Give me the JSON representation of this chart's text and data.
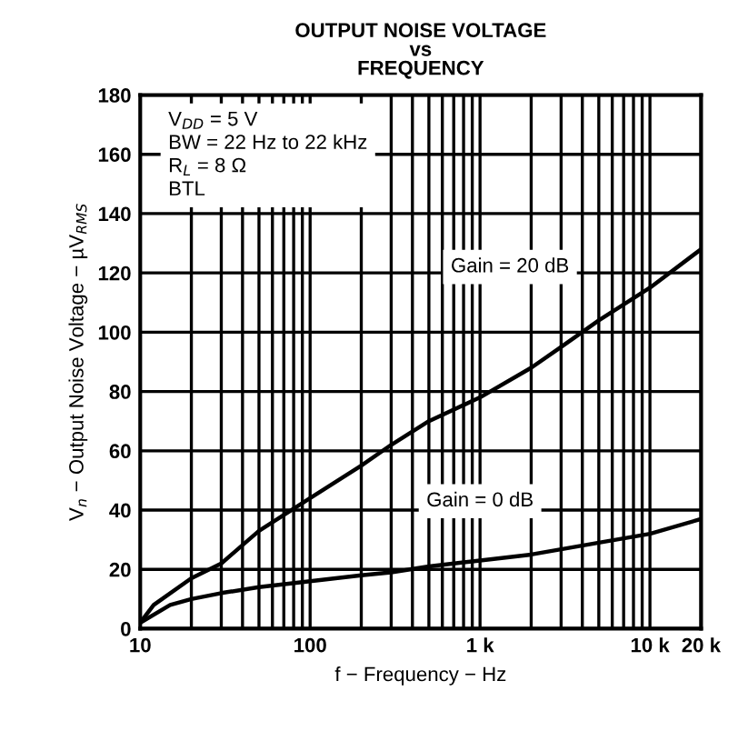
{
  "chart_data": {
    "type": "line",
    "title": "OUTPUT NOISE VOLTAGE\nvs\nFREQUENCY",
    "xlabel": "f − Frequency − Hz",
    "ylabel": "V$_{n}$ − Output Noise Voltage − µV$_{RMS}$",
    "annotations": [
      "V$_{DD}$ = 5 V\nBW = 22 Hz to 22 kHz\nR$_{L}$ = 8 Ω\nBTL"
    ],
    "log": "x",
    "xlim": [
      10,
      20000
    ],
    "xticks": [
      10,
      100,
      {
        "value": 1000,
        "label": "1 k"
      },
      {
        "value": 10000,
        "label": "10 k"
      },
      {
        "value": 20000,
        "label": "20 k"
      }
    ],
    "ylim": [
      0,
      180
    ],
    "yticks": [
      0,
      20,
      40,
      60,
      80,
      100,
      120,
      140,
      160,
      180
    ],
    "grid": true,
    "legend": false,
    "series": [
      {
        "name": "Gain = 20 dB",
        "color": "#000000",
        "x": [
          10,
          12,
          20,
          30,
          50,
          100,
          200,
          300,
          500,
          1000,
          2000,
          3000,
          5000,
          10000,
          20000
        ],
        "values": [
          2,
          8,
          17,
          22,
          33,
          44,
          55,
          62,
          70,
          78,
          88,
          95,
          104,
          115,
          128
        ]
      },
      {
        "name": "Gain = 0 dB",
        "color": "#000000",
        "x": [
          10,
          15,
          20,
          30,
          50,
          100,
          200,
          300,
          500,
          1000,
          2000,
          5000,
          10000,
          20000
        ],
        "values": [
          2,
          8,
          10,
          12,
          14,
          16,
          18,
          19,
          21,
          23,
          25,
          29,
          32,
          37
        ]
      }
    ]
  }
}
